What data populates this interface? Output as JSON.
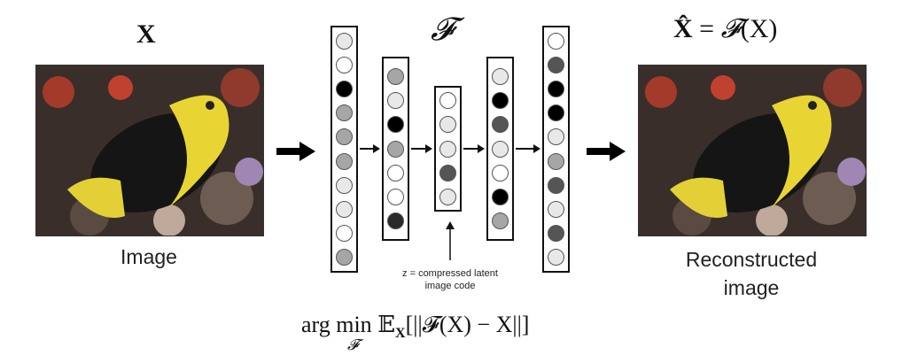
{
  "input": {
    "math_symbol": "X",
    "caption": "Image"
  },
  "network": {
    "symbol": "𝓕",
    "layers": [
      [
        "#e8e8e8",
        "#ffffff",
        "#000000",
        "#a6a6a6",
        "#a6a6a6",
        "#a6a6a6",
        "#e8e8e8",
        "#e8e8e8",
        "#ffffff",
        "#a6a6a6"
      ],
      [
        "#a6a6a6",
        "#e8e8e8",
        "#000000",
        "#a6a6a6",
        "#ffffff",
        "#ffffff",
        "#2a2a2a"
      ],
      [
        "#ffffff",
        "#e8e8e8",
        "#e8e8e8",
        "#555555",
        "#e8e8e8"
      ],
      [
        "#e8e8e8",
        "#000000",
        "#555555",
        "#e8e8e8",
        "#ffffff",
        "#000000",
        "#a6a6a6"
      ],
      [
        "#ffffff",
        "#555555",
        "#000000",
        "#000000",
        "#e8e8e8",
        "#a6a6a6",
        "#555555",
        "#e8e8e8",
        "#555555",
        "#e8e8e8"
      ]
    ],
    "latent_note_line1": "z = compressed latent",
    "latent_note_line2": "image code"
  },
  "output": {
    "math_hat_x": "X̂",
    "math_equals": "=",
    "math_f": "𝓕",
    "math_arg": "(X)",
    "caption_line1": "Reconstructed",
    "caption_line2": "image"
  },
  "objective": {
    "argmin": "arg min",
    "sub": "𝓕",
    "expectation": "𝔼",
    "expectation_sub": "X",
    "expression": "[||𝓕(X) − X||]"
  }
}
